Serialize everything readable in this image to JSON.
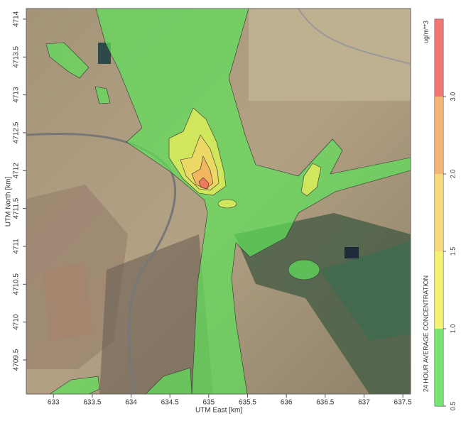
{
  "map": {
    "x_axis": {
      "label": "UTM East [km]",
      "xlim": [
        632.65,
        637.6
      ],
      "xticks": [
        633,
        633.5,
        634,
        634.5,
        635,
        635.5,
        636,
        636.5,
        637,
        637.5
      ]
    },
    "y_axis": {
      "label": "UTM North [km]",
      "ylim": [
        4709.05,
        4714.14
      ],
      "yticks": [
        4709.5,
        4710,
        4710.5,
        4711,
        4711.5,
        4712,
        4712.5,
        4713,
        4713.5,
        4714
      ]
    },
    "colorbar": {
      "label": "24 HOUR AVERAGE CONCENTRATION",
      "unit": "ug/m**3",
      "ticks": [
        0.5,
        {
          "value": 1,
          "label": "1.0"
        },
        1.5,
        {
          "value": 2,
          "label": "2.0"
        },
        {
          "value": 3,
          "label": "3.0"
        }
      ],
      "colors": [
        "#5fe05a",
        "#f2f05a",
        "#f6d468",
        "#f3a85c",
        "#ee5f5f"
      ]
    }
  }
}
